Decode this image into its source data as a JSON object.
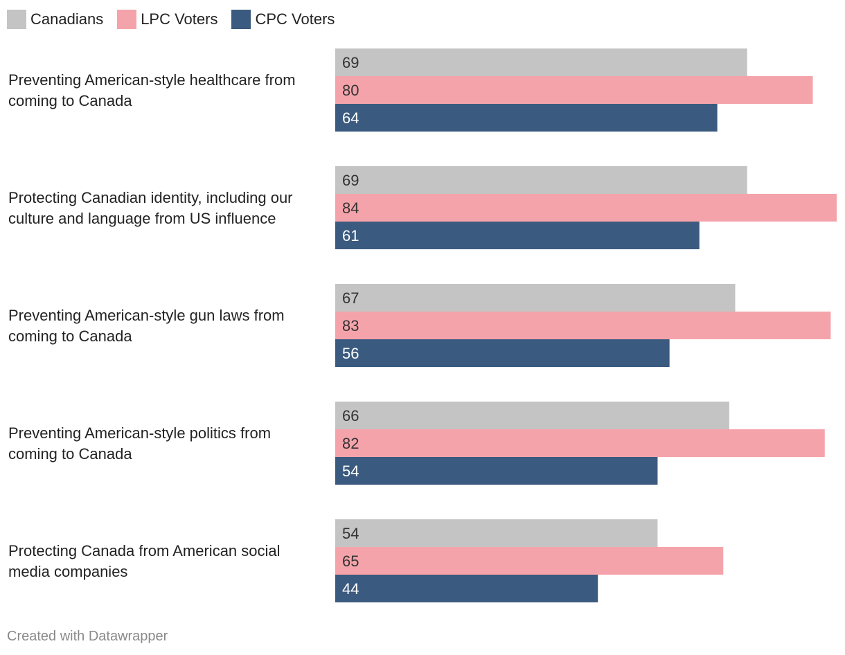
{
  "legend": {
    "items": [
      {
        "label": "Canadians",
        "color": "#c4c4c4"
      },
      {
        "label": "LPC Voters",
        "color": "#f5a3aa"
      },
      {
        "label": "CPC Voters",
        "color": "#3b5a7f"
      }
    ]
  },
  "chart_data": {
    "type": "bar",
    "orientation": "horizontal",
    "title": "",
    "xlabel": "",
    "ylabel": "",
    "xlim": [
      0,
      84
    ],
    "grid": false,
    "legend_position": "top-left",
    "categories": [
      [
        "Preventing American-style healthcare from",
        "coming to Canada"
      ],
      [
        "Protecting Canadian identity, including our",
        "culture and language from US influence"
      ],
      [
        "Preventing American-style gun laws from",
        "coming to Canada"
      ],
      [
        "Preventing American-style politics from",
        "coming to Canada"
      ],
      [
        "Protecting Canada from American social",
        "media companies"
      ]
    ],
    "series": [
      {
        "name": "Canadians",
        "color": "#c4c4c4",
        "label_color": "#333333",
        "values": [
          69,
          69,
          67,
          66,
          54
        ]
      },
      {
        "name": "LPC Voters",
        "color": "#f5a3aa",
        "label_color": "#333333",
        "values": [
          80,
          84,
          83,
          82,
          65
        ]
      },
      {
        "name": "CPC Voters",
        "color": "#3b5a7f",
        "label_color": "#ffffff",
        "values": [
          64,
          61,
          56,
          54,
          44
        ]
      }
    ]
  },
  "footer": {
    "credit": "Created with Datawrapper"
  }
}
